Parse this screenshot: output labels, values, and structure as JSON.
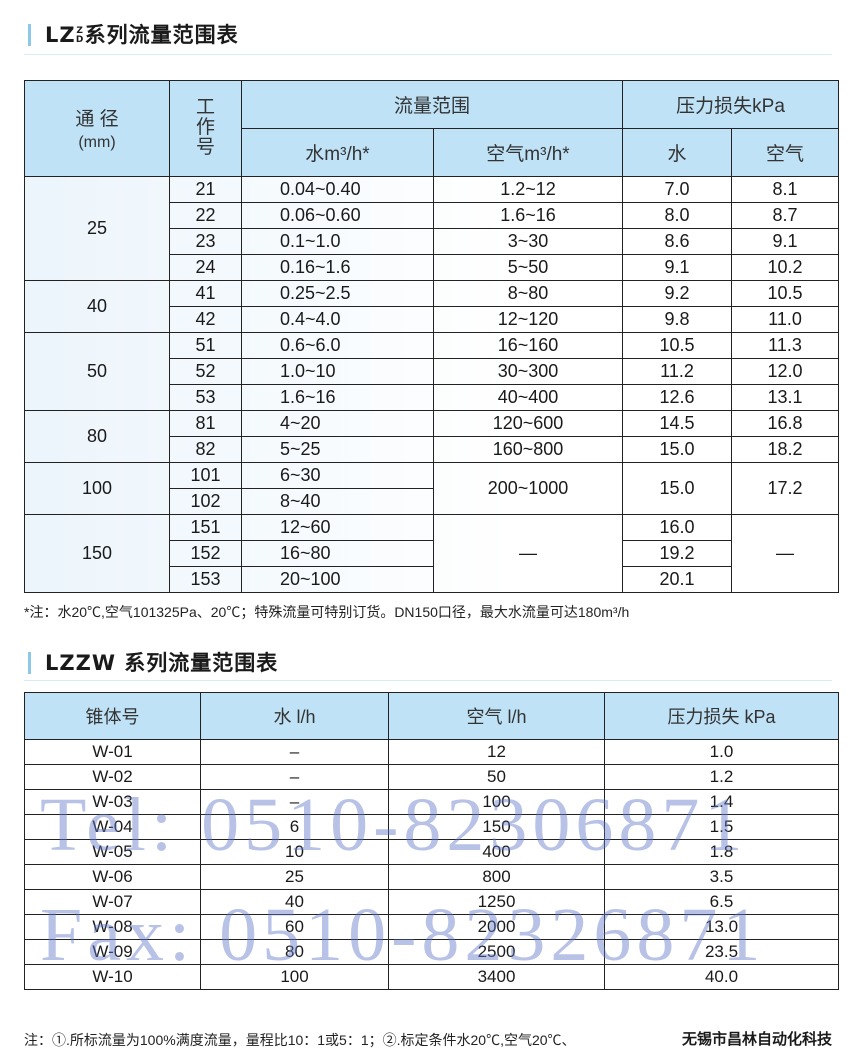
{
  "table1": {
    "title": "LZ Z D 系列流量范围表",
    "title_main": "LZ",
    "title_sup": "Z",
    "title_sub": "D",
    "title_rest": "系列流量范围表",
    "headers": {
      "dn": "通 径",
      "dn_unit": "(mm)",
      "no": "工作号",
      "flow": "流量范围",
      "pressure": "压力损失kPa",
      "water_flow": "水m³/h*",
      "air_flow": "空气m³/h*",
      "p_water": "水",
      "p_air": "空气"
    },
    "groups": [
      {
        "dn": "25",
        "rows": [
          {
            "no": "21",
            "water": "0.04~0.40",
            "air": "1.2~12",
            "p_water": "7.0",
            "p_air": "8.1"
          },
          {
            "no": "22",
            "water": "0.06~0.60",
            "air": "1.6~16",
            "p_water": "8.0",
            "p_air": "8.7"
          },
          {
            "no": "23",
            "water": "0.1~1.0",
            "air": "3~30",
            "p_water": "8.6",
            "p_air": "9.1"
          },
          {
            "no": "24",
            "water": "0.16~1.6",
            "air": "5~50",
            "p_water": "9.1",
            "p_air": "10.2"
          }
        ]
      },
      {
        "dn": "40",
        "rows": [
          {
            "no": "41",
            "water": "0.25~2.5",
            "air": "8~80",
            "p_water": "9.2",
            "p_air": "10.5"
          },
          {
            "no": "42",
            "water": "0.4~4.0",
            "air": "12~120",
            "p_water": "9.8",
            "p_air": "11.0"
          }
        ]
      },
      {
        "dn": "50",
        "rows": [
          {
            "no": "51",
            "water": "0.6~6.0",
            "air": "16~160",
            "p_water": "10.5",
            "p_air": "11.3"
          },
          {
            "no": "52",
            "water": "1.0~10",
            "air": "30~300",
            "p_water": "11.2",
            "p_air": "12.0"
          },
          {
            "no": "53",
            "water": "1.6~16",
            "air": "40~400",
            "p_water": "12.6",
            "p_air": "13.1"
          }
        ]
      },
      {
        "dn": "80",
        "rows": [
          {
            "no": "81",
            "water": "4~20",
            "air": "120~600",
            "p_water": "14.5",
            "p_air": "16.8"
          },
          {
            "no": "82",
            "water": "5~25",
            "air": "160~800",
            "p_water": "15.0",
            "p_air": "18.2"
          }
        ]
      },
      {
        "dn": "100",
        "air": "200~1000",
        "p_water": "15.0",
        "p_air": "17.2",
        "rows": [
          {
            "no": "101",
            "water": "6~30"
          },
          {
            "no": "102",
            "water": "8~40"
          }
        ]
      },
      {
        "dn": "150",
        "air": "—",
        "p_air": "—",
        "rows": [
          {
            "no": "151",
            "water": "12~60",
            "p_water": "16.0"
          },
          {
            "no": "152",
            "water": "16~80",
            "p_water": "19.2"
          },
          {
            "no": "153",
            "water": "20~100",
            "p_water": "20.1"
          }
        ]
      }
    ],
    "note": "*注：水20℃,空气101325Pa、20℃；特殊流量可特别订货。DN150口径，最大水流量可达180m³/h"
  },
  "table2": {
    "title": "LZZW 系列流量范围表",
    "headers": [
      "锥体号",
      "水 l/h",
      "空气 l/h",
      "压力损失 kPa"
    ],
    "rows": [
      [
        "W-01",
        "–",
        "12",
        "1.0"
      ],
      [
        "W-02",
        "–",
        "50",
        "1.2"
      ],
      [
        "W-03",
        "–",
        "100",
        "1.4"
      ],
      [
        "W-04",
        "6",
        "150",
        "1.5"
      ],
      [
        "W-05",
        "10",
        "400",
        "1.8"
      ],
      [
        "W-06",
        "25",
        "800",
        "3.5"
      ],
      [
        "W-07",
        "40",
        "1250",
        "6.5"
      ],
      [
        "W-08",
        "60",
        "2000",
        "13.0"
      ],
      [
        "W-09",
        "80",
        "2500",
        "23.5"
      ],
      [
        "W-10",
        "100",
        "3400",
        "40.0"
      ]
    ],
    "note": "注：①.所标流量为100%满度流量，量程比10：1或5：1；②.标定条件水20℃,空气20℃、"
  },
  "watermark": {
    "tel": "Tel: 0510-82306871",
    "fax": "Fax: 0510-82326871"
  },
  "company": "无锡市昌林自动化科技",
  "colors": {
    "header_bg": "#bfe2f6",
    "accent": "#8cc8e8",
    "watermark": "#5f78c8"
  }
}
